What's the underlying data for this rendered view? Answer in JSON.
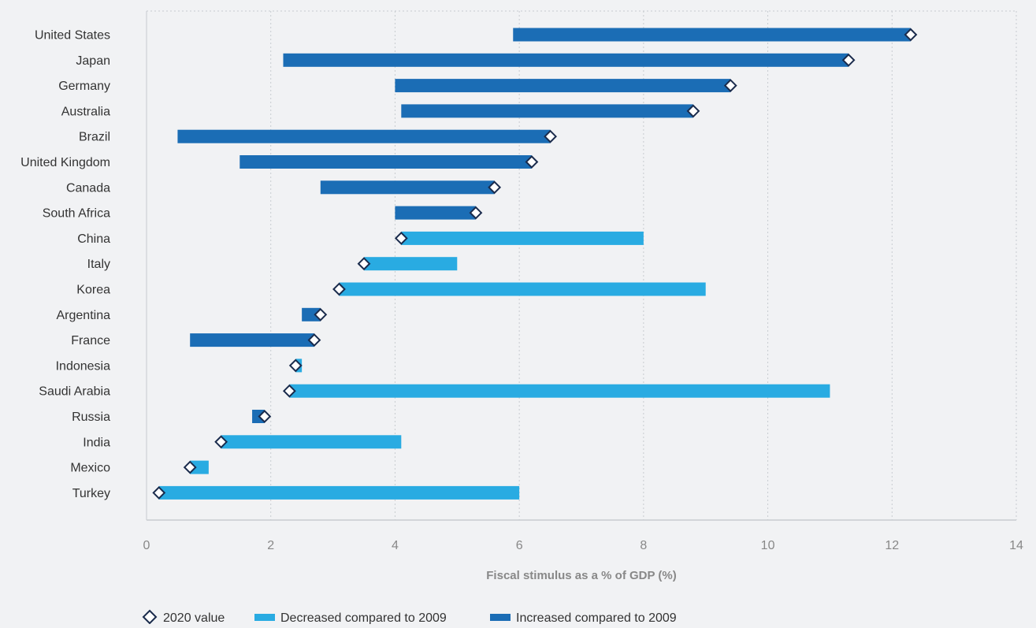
{
  "chart_data": {
    "type": "bar",
    "subtype": "dumbbell-range",
    "xlabel": "Fiscal stimulus as a % of GDP (%)",
    "xlim": [
      0,
      14
    ],
    "x_ticks": [
      "0",
      "2",
      "4",
      "6",
      "8",
      "10",
      "12",
      "14"
    ],
    "grid": true,
    "legend_position": "bottom-left",
    "legend": {
      "marker_label": "2020 value",
      "decreased_label": "Decreased compared to 2009",
      "increased_label": "Increased compared to 2009"
    },
    "colors": {
      "increased": "#1b6db5",
      "decreased": "#29abe2",
      "marker_fill": "#ffffff",
      "marker_stroke": "#1a2b4c",
      "grid": "#c8cbd0",
      "text": "#333333",
      "tick_text": "#888888"
    },
    "categories": [
      "United States",
      "Japan",
      "Germany",
      "Australia",
      "Brazil",
      "United Kingdom",
      "Canada",
      "South Africa",
      "China",
      "Italy",
      "Korea",
      "Argentina",
      "France",
      "Indonesia",
      "Saudi Arabia",
      "Russia",
      "India",
      "Mexico",
      "Turkey"
    ],
    "series": [
      {
        "name": "2020 value",
        "values": [
          12.3,
          11.3,
          9.4,
          8.8,
          6.5,
          6.2,
          5.6,
          5.3,
          4.1,
          3.5,
          3.1,
          2.8,
          2.7,
          2.4,
          2.3,
          1.9,
          1.2,
          0.7,
          0.2
        ]
      },
      {
        "name": "2009",
        "values": [
          5.9,
          2.2,
          4.0,
          4.1,
          0.5,
          1.5,
          2.8,
          4.0,
          8.0,
          5.0,
          9.0,
          2.5,
          0.7,
          2.5,
          11.0,
          1.7,
          4.1,
          1.0,
          6.0
        ]
      }
    ]
  }
}
